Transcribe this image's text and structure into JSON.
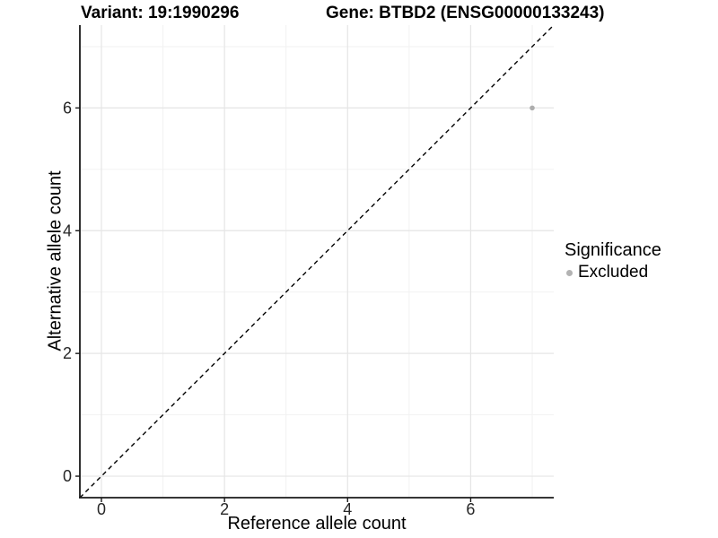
{
  "title": {
    "variant": "Variant: 19:1990296",
    "gene": "Gene: BTBD2 (ENSG00000133243)"
  },
  "axes": {
    "x_label": "Reference allele count",
    "y_label": "Alternative allele count"
  },
  "legend": {
    "title": "Significance",
    "items": [
      {
        "label": "Excluded",
        "color": "#b3b3b3"
      }
    ]
  },
  "colors": {
    "background": "#ffffff",
    "grid_major": "#e5e5e5",
    "grid_minor": "#f2f2f2",
    "axis_line": "#1a1a1a",
    "tick_text": "#262626",
    "reference_line": "#000000",
    "point": "#adadad"
  },
  "chart_data": {
    "type": "scatter",
    "title": "Variant: 19:1990296  Gene: BTBD2 (ENSG00000133243)",
    "xlabel": "Reference allele count",
    "ylabel": "Alternative allele count",
    "xlim": [
      -0.35,
      7.35
    ],
    "ylim": [
      -0.35,
      7.35
    ],
    "x_major_ticks": [
      0,
      2,
      4,
      6
    ],
    "y_major_ticks": [
      0,
      2,
      4,
      6
    ],
    "x_minor_ticks": [
      1,
      3,
      5,
      7
    ],
    "y_minor_ticks": [
      1,
      3,
      5,
      7
    ],
    "grid": true,
    "legend_position": "right",
    "series": [
      {
        "name": "Excluded",
        "color": "#adadad",
        "points": [
          {
            "x": 7,
            "y": 6
          }
        ]
      }
    ],
    "reference_line": {
      "label": "identity (y = x)",
      "style": "dashed",
      "from": [
        -0.35,
        -0.35
      ],
      "to": [
        7.35,
        7.35
      ]
    }
  }
}
